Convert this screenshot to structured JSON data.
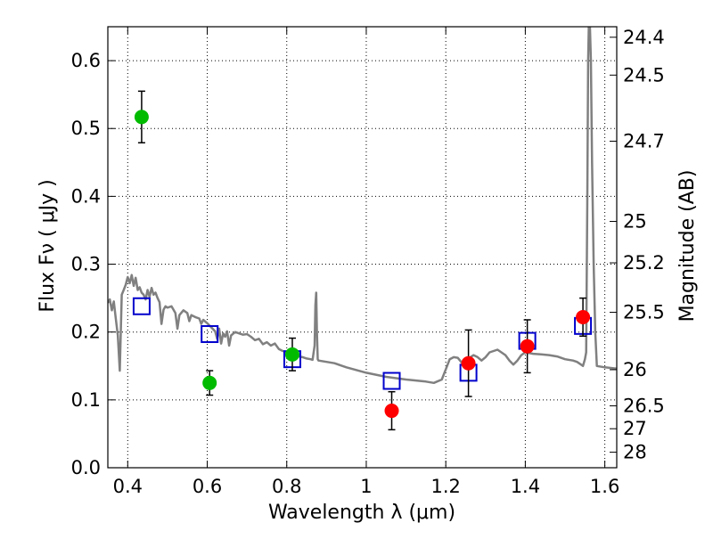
{
  "chart_data": {
    "type": "scatter",
    "xlabel": "Wavelength  λ (μm)",
    "ylabel": "Flux  Fν  ( μJy )",
    "y2label": "Magnitude (AB)",
    "xlim": [
      0.35,
      1.63
    ],
    "ylim": [
      0.0,
      0.65
    ],
    "grid": true,
    "x_ticks": [
      0.4,
      0.6,
      0.8,
      1.0,
      1.2,
      1.4,
      1.6
    ],
    "x_tick_labels": [
      "0.4",
      "0.6",
      "0.8",
      "1",
      "1.2",
      "1.4",
      "1.6"
    ],
    "y_ticks": [
      0.0,
      0.1,
      0.2,
      0.3,
      0.4,
      0.5,
      0.6
    ],
    "y_tick_labels": [
      "0.0",
      "0.1",
      "0.2",
      "0.3",
      "0.4",
      "0.5",
      "0.6"
    ],
    "y2_ticks": [
      {
        "label": "24.4",
        "flux": 0.6345
      },
      {
        "label": "24.5",
        "flux": 0.5787
      },
      {
        "label": "24.7",
        "flux": 0.4813
      },
      {
        "label": "25",
        "flux": 0.3631
      },
      {
        "label": "25.2",
        "flux": 0.302
      },
      {
        "label": "25.5",
        "flux": 0.2291
      },
      {
        "label": "26",
        "flux": 0.1445
      },
      {
        "label": "26.5",
        "flux": 0.0912
      },
      {
        "label": "27",
        "flux": 0.0575
      },
      {
        "label": "28",
        "flux": 0.0229
      }
    ],
    "series": [
      {
        "marker": "circle",
        "color": "#00bb00",
        "points": [
          {
            "x": 0.435,
            "y": 0.517,
            "err": 0.038
          },
          {
            "x": 0.606,
            "y": 0.125,
            "err": 0.018
          },
          {
            "x": 0.814,
            "y": 0.167,
            "err": 0.024
          }
        ]
      },
      {
        "marker": "circle",
        "color": "#ff0000",
        "points": [
          {
            "x": 1.064,
            "y": 0.084,
            "err": 0.028
          },
          {
            "x": 1.257,
            "y": 0.154,
            "err": 0.049
          },
          {
            "x": 1.405,
            "y": 0.179,
            "err": 0.039
          },
          {
            "x": 1.545,
            "y": 0.222,
            "err": 0.028
          }
        ]
      },
      {
        "marker": "open-square",
        "color": "#0000cc",
        "points": [
          {
            "x": 0.435,
            "y": 0.238
          },
          {
            "x": 0.606,
            "y": 0.197
          },
          {
            "x": 0.814,
            "y": 0.16
          },
          {
            "x": 1.064,
            "y": 0.128
          },
          {
            "x": 1.257,
            "y": 0.14
          },
          {
            "x": 1.405,
            "y": 0.187
          },
          {
            "x": 1.545,
            "y": 0.209
          }
        ]
      },
      {
        "marker": "line",
        "color": "#808080",
        "points": [
          [
            0.35,
            0.243
          ],
          [
            0.355,
            0.248
          ],
          [
            0.36,
            0.232
          ],
          [
            0.365,
            0.245
          ],
          [
            0.37,
            0.22
          ],
          [
            0.375,
            0.195
          ],
          [
            0.38,
            0.143
          ],
          [
            0.385,
            0.255
          ],
          [
            0.39,
            0.262
          ],
          [
            0.395,
            0.27
          ],
          [
            0.4,
            0.281
          ],
          [
            0.405,
            0.272
          ],
          [
            0.41,
            0.284
          ],
          [
            0.415,
            0.268
          ],
          [
            0.42,
            0.28
          ],
          [
            0.425,
            0.262
          ],
          [
            0.43,
            0.266
          ],
          [
            0.435,
            0.258
          ],
          [
            0.44,
            0.255
          ],
          [
            0.445,
            0.248
          ],
          [
            0.45,
            0.262
          ],
          [
            0.455,
            0.252
          ],
          [
            0.46,
            0.265
          ],
          [
            0.465,
            0.255
          ],
          [
            0.47,
            0.258
          ],
          [
            0.475,
            0.25
          ],
          [
            0.48,
            0.244
          ],
          [
            0.485,
            0.212
          ],
          [
            0.49,
            0.233
          ],
          [
            0.495,
            0.238
          ],
          [
            0.5,
            0.236
          ],
          [
            0.51,
            0.238
          ],
          [
            0.52,
            0.228
          ],
          [
            0.525,
            0.205
          ],
          [
            0.53,
            0.225
          ],
          [
            0.54,
            0.232
          ],
          [
            0.55,
            0.228
          ],
          [
            0.555,
            0.216
          ],
          [
            0.56,
            0.225
          ],
          [
            0.57,
            0.222
          ],
          [
            0.58,
            0.22
          ],
          [
            0.585,
            0.212
          ],
          [
            0.59,
            0.218
          ],
          [
            0.6,
            0.213
          ],
          [
            0.61,
            0.207
          ],
          [
            0.62,
            0.201
          ],
          [
            0.625,
            0.19
          ],
          [
            0.63,
            0.205
          ],
          [
            0.635,
            0.183
          ],
          [
            0.64,
            0.198
          ],
          [
            0.645,
            0.193
          ],
          [
            0.65,
            0.201
          ],
          [
            0.655,
            0.18
          ],
          [
            0.66,
            0.195
          ],
          [
            0.67,
            0.2
          ],
          [
            0.68,
            0.198
          ],
          [
            0.69,
            0.196
          ],
          [
            0.7,
            0.197
          ],
          [
            0.71,
            0.193
          ],
          [
            0.72,
            0.188
          ],
          [
            0.73,
            0.19
          ],
          [
            0.74,
            0.182
          ],
          [
            0.75,
            0.185
          ],
          [
            0.76,
            0.18
          ],
          [
            0.77,
            0.183
          ],
          [
            0.78,
            0.175
          ],
          [
            0.79,
            0.172
          ],
          [
            0.8,
            0.17
          ],
          [
            0.81,
            0.168
          ],
          [
            0.82,
            0.166
          ],
          [
            0.83,
            0.164
          ],
          [
            0.84,
            0.163
          ],
          [
            0.85,
            0.161
          ],
          [
            0.86,
            0.16
          ],
          [
            0.865,
            0.159
          ],
          [
            0.87,
            0.18
          ],
          [
            0.872,
            0.24
          ],
          [
            0.874,
            0.258
          ],
          [
            0.876,
            0.2
          ],
          [
            0.878,
            0.16
          ],
          [
            0.88,
            0.158
          ],
          [
            0.9,
            0.156
          ],
          [
            0.92,
            0.154
          ],
          [
            0.95,
            0.148
          ],
          [
            1.0,
            0.14
          ],
          [
            1.05,
            0.134
          ],
          [
            1.1,
            0.13
          ],
          [
            1.15,
            0.127
          ],
          [
            1.17,
            0.125
          ],
          [
            1.19,
            0.13
          ],
          [
            1.2,
            0.145
          ],
          [
            1.21,
            0.16
          ],
          [
            1.22,
            0.163
          ],
          [
            1.23,
            0.162
          ],
          [
            1.24,
            0.155
          ],
          [
            1.25,
            0.15
          ],
          [
            1.26,
            0.162
          ],
          [
            1.27,
            0.166
          ],
          [
            1.28,
            0.163
          ],
          [
            1.29,
            0.158
          ],
          [
            1.3,
            0.163
          ],
          [
            1.31,
            0.17
          ],
          [
            1.33,
            0.174
          ],
          [
            1.35,
            0.166
          ],
          [
            1.36,
            0.158
          ],
          [
            1.37,
            0.152
          ],
          [
            1.38,
            0.158
          ],
          [
            1.39,
            0.166
          ],
          [
            1.4,
            0.17
          ],
          [
            1.42,
            0.168
          ],
          [
            1.44,
            0.167
          ],
          [
            1.46,
            0.166
          ],
          [
            1.48,
            0.164
          ],
          [
            1.5,
            0.16
          ],
          [
            1.52,
            0.158
          ],
          [
            1.53,
            0.156
          ],
          [
            1.54,
            0.152
          ],
          [
            1.545,
            0.15
          ],
          [
            1.55,
            0.16
          ],
          [
            1.553,
            0.17
          ],
          [
            1.556,
            0.4
          ],
          [
            1.558,
            0.6
          ],
          [
            1.56,
            0.66
          ],
          [
            1.562,
            0.66
          ],
          [
            1.565,
            0.6
          ],
          [
            1.568,
            0.45
          ],
          [
            1.572,
            0.3
          ],
          [
            1.576,
            0.2
          ],
          [
            1.58,
            0.15
          ],
          [
            1.6,
            0.148
          ],
          [
            1.63,
            0.146
          ]
        ]
      }
    ]
  }
}
